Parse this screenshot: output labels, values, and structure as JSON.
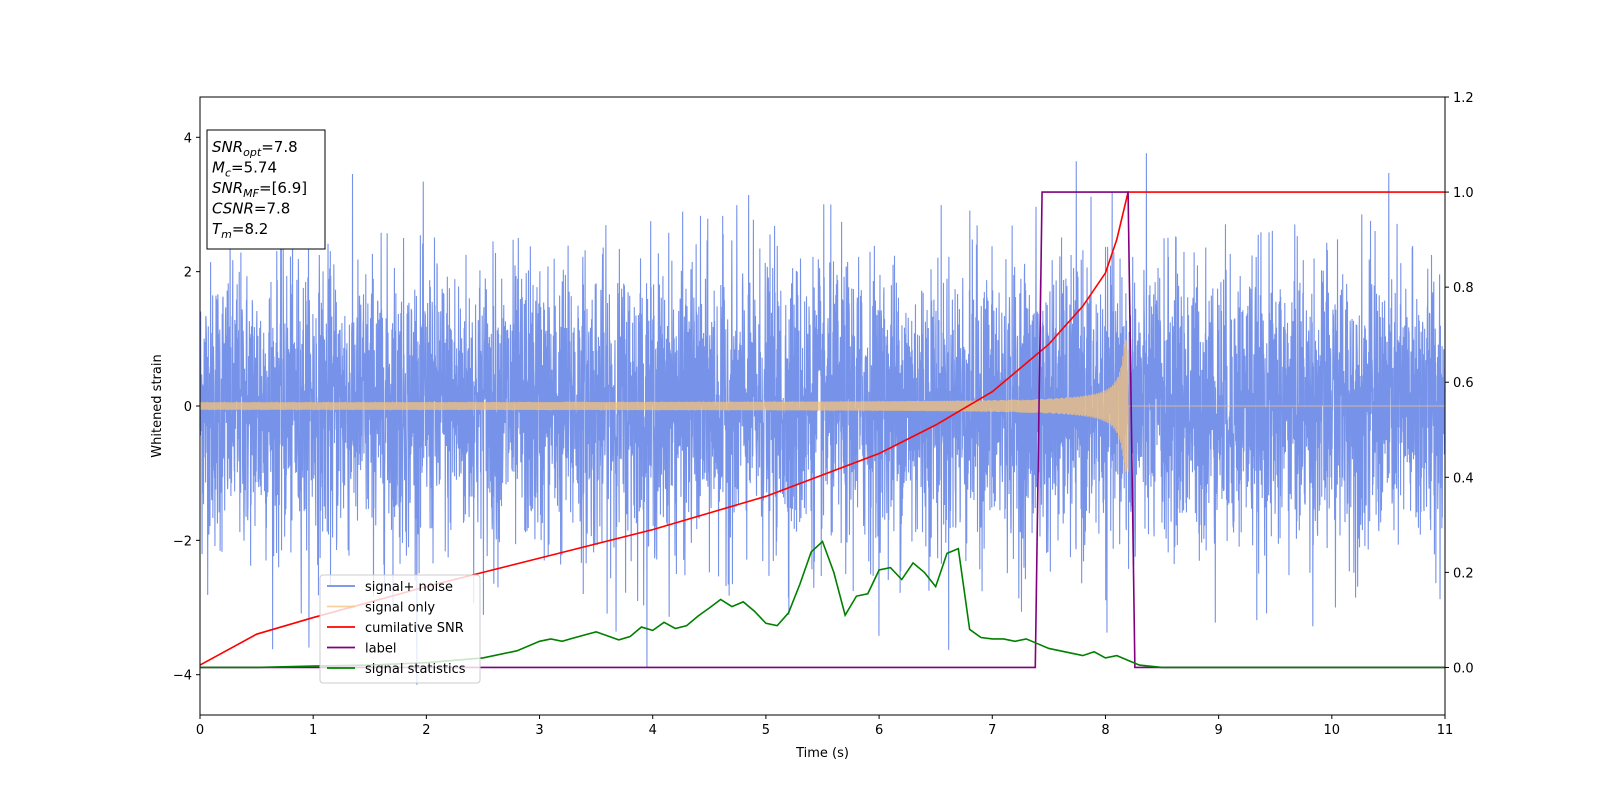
{
  "chart_data": {
    "type": "line",
    "xlabel": "Time (s)",
    "ylabel": "Whitened strain",
    "xlim": [
      0,
      11
    ],
    "ylim": [
      -4.6,
      4.6
    ],
    "y2lim": [
      -0.1,
      1.2
    ],
    "x_ticks": [
      "0",
      "1",
      "2",
      "3",
      "4",
      "5",
      "6",
      "7",
      "8",
      "9",
      "10",
      "11"
    ],
    "y_ticks": [
      "−4",
      "−2",
      "0",
      "2",
      "4"
    ],
    "y2_ticks": [
      "0.0",
      "0.2",
      "0.4",
      "0.6",
      "0.8",
      "1.0",
      "1.2"
    ],
    "grid": false,
    "legend_position": "lower-left",
    "info_box": {
      "lines": [
        {
          "sym": "SNR",
          "sub": "opt",
          "rest": "=7.8"
        },
        {
          "sym": "M",
          "sub": "c",
          "rest": "=5.74"
        },
        {
          "sym": "SNR",
          "sub": "MF",
          "rest": "=[6.9]"
        },
        {
          "sym": "CSNR",
          "sub": "",
          "rest": "=7.8"
        },
        {
          "sym": "T",
          "sub": "m",
          "rest": "=8.2"
        }
      ]
    },
    "series": [
      {
        "name": "signal+ noise",
        "color": "#6f8ce8",
        "axis": "left",
        "description_values": {
          "noise_std": 1.0,
          "max_peak": 4.15,
          "min_peak": -4.15
        }
      },
      {
        "name": "signal only",
        "color": "#f5c27a",
        "axis": "left",
        "chirp": {
          "start_amp": 0.05,
          "end_amp": 1.0,
          "end_time": 8.2
        }
      },
      {
        "name": "cumilative SNR",
        "color": "#ff0000",
        "axis": "right",
        "x": [
          0.0,
          0.5,
          1.0,
          2.0,
          3.0,
          4.0,
          5.0,
          6.0,
          6.5,
          7.0,
          7.5,
          7.8,
          8.0,
          8.1,
          8.2,
          11.0
        ],
        "y": [
          0.005,
          0.07,
          0.105,
          0.17,
          0.23,
          0.29,
          0.36,
          0.45,
          0.51,
          0.58,
          0.68,
          0.76,
          0.83,
          0.9,
          1.0,
          1.0
        ]
      },
      {
        "name": "label",
        "color": "#800080",
        "axis": "right",
        "x": [
          0.0,
          7.38,
          7.44,
          8.2,
          8.26,
          11.0
        ],
        "y": [
          0.0,
          0.0,
          1.0,
          1.0,
          0.0,
          0.0
        ]
      },
      {
        "name": "signal statistics",
        "color": "#008000",
        "axis": "right",
        "x": [
          0.0,
          0.5,
          1.0,
          1.5,
          2.0,
          2.5,
          2.8,
          3.0,
          3.1,
          3.2,
          3.3,
          3.5,
          3.7,
          3.8,
          3.9,
          4.0,
          4.1,
          4.2,
          4.3,
          4.4,
          4.5,
          4.6,
          4.7,
          4.8,
          4.9,
          5.0,
          5.1,
          5.2,
          5.3,
          5.4,
          5.5,
          5.6,
          5.7,
          5.8,
          5.9,
          6.0,
          6.1,
          6.2,
          6.3,
          6.4,
          6.5,
          6.6,
          6.7,
          6.8,
          6.9,
          7.0,
          7.1,
          7.2,
          7.3,
          7.4,
          7.5,
          7.6,
          7.7,
          7.8,
          7.9,
          8.0,
          8.1,
          8.2,
          8.3,
          8.5,
          9.0,
          10.0,
          11.0
        ],
        "y": [
          0.0,
          0.0,
          0.003,
          0.005,
          0.01,
          0.02,
          0.035,
          0.055,
          0.06,
          0.055,
          0.062,
          0.075,
          0.058,
          0.065,
          0.085,
          0.078,
          0.095,
          0.082,
          0.088,
          0.108,
          0.125,
          0.143,
          0.128,
          0.138,
          0.118,
          0.093,
          0.088,
          0.115,
          0.175,
          0.243,
          0.265,
          0.2,
          0.11,
          0.15,
          0.155,
          0.205,
          0.21,
          0.185,
          0.22,
          0.2,
          0.17,
          0.24,
          0.25,
          0.08,
          0.063,
          0.06,
          0.06,
          0.055,
          0.06,
          0.05,
          0.04,
          0.035,
          0.03,
          0.025,
          0.033,
          0.02,
          0.025,
          0.015,
          0.005,
          0.0,
          0.0,
          0.0,
          0.0
        ]
      }
    ]
  }
}
